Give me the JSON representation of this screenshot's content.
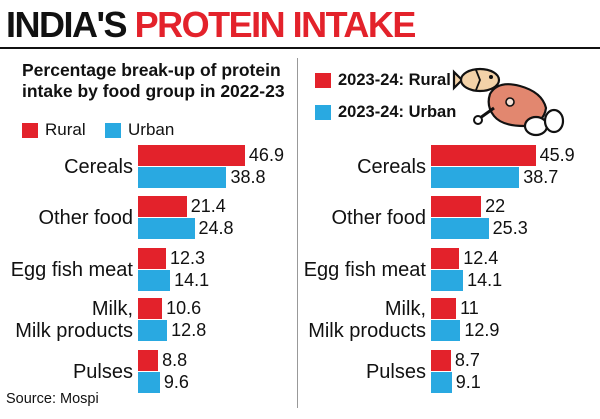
{
  "header": {
    "title_part1": "INDIA'S ",
    "title_part2": "PROTEIN INTAKE"
  },
  "colors": {
    "rural": "#e3222b",
    "urban": "#29a9e1",
    "title_accent": "#e3222b"
  },
  "icons": [
    "fish-icon",
    "meat-icon",
    "egg-icon"
  ],
  "source": "Source: Mospi",
  "chart_data": [
    {
      "type": "bar",
      "orientation": "horizontal",
      "title": "Percentage break-up of protein intake by food group in 2022-23",
      "categories": [
        "Cereals",
        "Other food",
        "Egg fish meat",
        "Milk,\nMilk products",
        "Pulses"
      ],
      "series": [
        {
          "name": "Rural",
          "values": [
            46.9,
            21.4,
            12.3,
            10.6,
            8.8
          ]
        },
        {
          "name": "Urban",
          "values": [
            38.8,
            24.8,
            14.1,
            12.8,
            9.6
          ]
        }
      ],
      "legend": "top-left",
      "grid": false
    },
    {
      "type": "bar",
      "orientation": "horizontal",
      "categories": [
        "Cereals",
        "Other food",
        "Egg fish meat",
        "Milk,\nMilk products",
        "Pulses"
      ],
      "series": [
        {
          "name": "2023-24: Rural",
          "values": [
            45.9,
            22,
            12.4,
            11,
            8.7
          ]
        },
        {
          "name": "2023-24: Urban",
          "values": [
            38.7,
            25.3,
            14.1,
            12.9,
            9.1
          ]
        }
      ],
      "legend": "top-left",
      "grid": false
    }
  ]
}
